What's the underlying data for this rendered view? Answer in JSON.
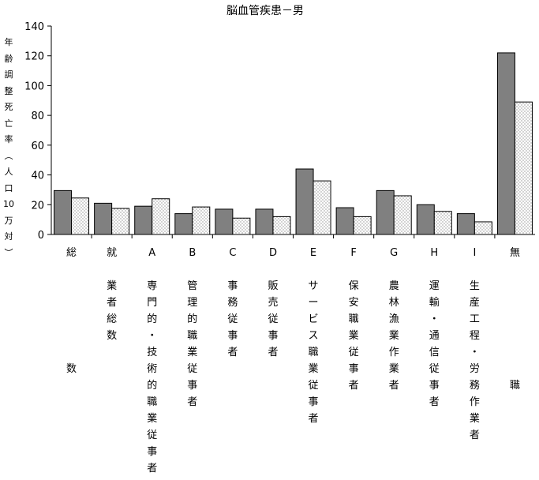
{
  "chart_data": {
    "type": "bar",
    "title": "脳血管疾患－男",
    "ylabel": "年齢調整死亡率（人口10万対）",
    "ylim": [
      0,
      140
    ],
    "yticks": [
      0,
      20,
      40,
      60,
      80,
      100,
      120,
      140
    ],
    "categories": [
      "総数",
      "就業者総数",
      "A専門的・技術的職業従事者",
      "B管理的職業従事者",
      "C事務従事者",
      "D販売従事者",
      "Eサービス職業従事者",
      "F保安職業従事者",
      "G農林漁業作業者",
      "H運輸・通信従事者",
      "I生産工程・労務作業者",
      "無職"
    ],
    "series": [
      {
        "values": [
          29.5,
          21,
          19,
          14,
          17,
          17,
          44,
          18,
          29.5,
          20,
          14,
          122
        ]
      },
      {
        "values": [
          24.5,
          17.5,
          24,
          18.5,
          11,
          12,
          36,
          12,
          26,
          15.5,
          8.5,
          89
        ]
      }
    ],
    "grid": false
  },
  "colors": {
    "series1": "#808080",
    "series2_dots": "#666666",
    "axis": "#000000"
  }
}
